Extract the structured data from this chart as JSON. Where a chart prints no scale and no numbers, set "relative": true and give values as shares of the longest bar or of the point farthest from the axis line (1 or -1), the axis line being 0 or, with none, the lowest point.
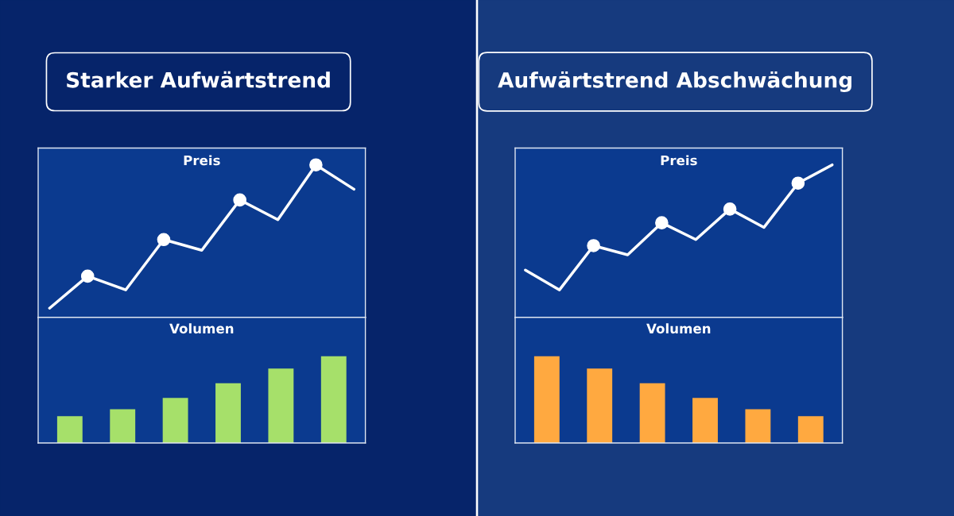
{
  "chart_data": [
    {
      "type": "line",
      "title": "Preis",
      "annotations": [
        "Starker Aufwärtstrend"
      ],
      "relative": true,
      "tick_labels": false,
      "categories": [
        null,
        null,
        null,
        null,
        null,
        null,
        null,
        null,
        null
      ],
      "series": [
        {
          "color": "#ffffff",
          "values": [
            0.06,
            0.27,
            0.18,
            0.51,
            0.44,
            0.77,
            0.64,
            1,
            0.84
          ]
        }
      ]
    },
    {
      "type": "bar",
      "title": "Volumen",
      "relative": true,
      "tick_labels": false,
      "categories": [
        null,
        null,
        null,
        null,
        null,
        null
      ],
      "series": [
        {
          "color": "#a6e06a",
          "values": [
            0.31,
            0.39,
            0.52,
            0.69,
            0.86,
            1
          ]
        }
      ]
    },
    {
      "type": "line",
      "title": "Preis",
      "annotations": [
        "Aufwärtstrend Abschwächung"
      ],
      "relative": true,
      "tick_labels": false,
      "categories": [
        null,
        null,
        null,
        null,
        null,
        null,
        null,
        null,
        null,
        null
      ],
      "series": [
        {
          "color": "#ffffff",
          "values": [
            0.31,
            0.18,
            0.47,
            0.41,
            0.62,
            0.51,
            0.71,
            0.59,
            0.88,
            1
          ]
        }
      ]
    },
    {
      "type": "bar",
      "title": "Volumen",
      "relative": true,
      "tick_labels": false,
      "categories": [
        null,
        null,
        null,
        null,
        null,
        null
      ],
      "series": [
        {
          "color": "#ffa940",
          "values": [
            1,
            0.86,
            0.69,
            0.52,
            0.39,
            0.31
          ]
        }
      ]
    }
  ]
}
